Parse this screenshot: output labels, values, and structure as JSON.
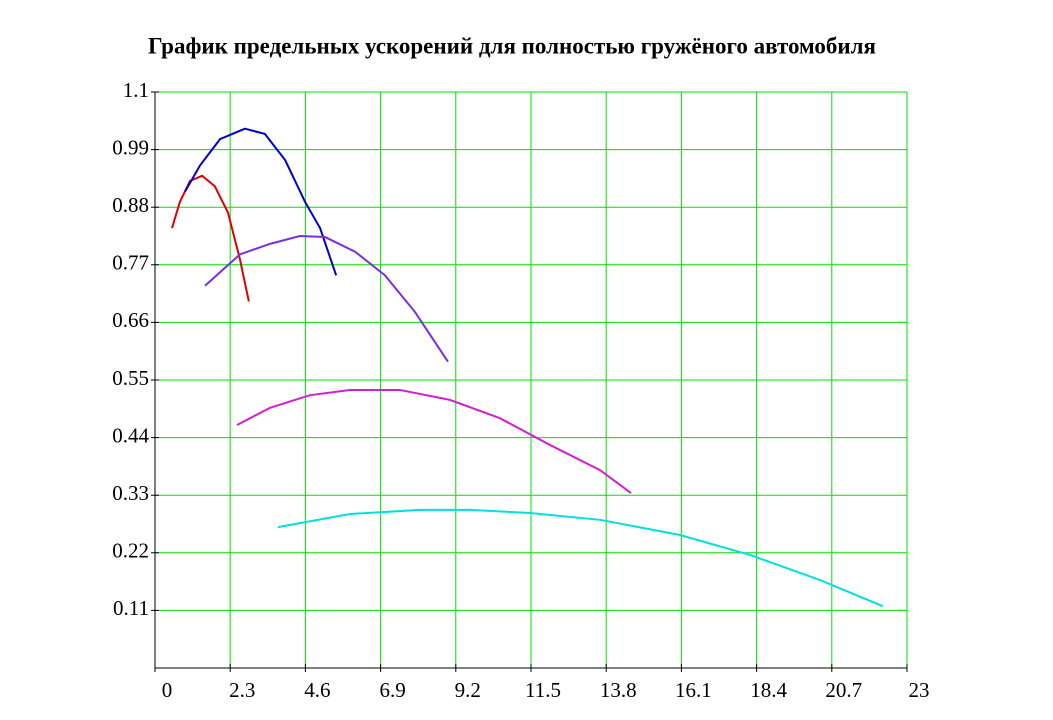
{
  "chart_data": {
    "type": "line",
    "title": "График предельных ускорений для полностью гружёного автомобиля",
    "xlim": [
      0,
      23
    ],
    "ylim": [
      0,
      1.1
    ],
    "xticks": [
      0,
      2.3,
      4.6,
      6.9,
      9.2,
      11.5,
      13.8,
      16.1,
      18.4,
      20.7,
      23
    ],
    "yticks": [
      0.11,
      0.22,
      0.33,
      0.44,
      0.55,
      0.66,
      0.77,
      0.88,
      0.99,
      1.1
    ],
    "grid": true,
    "grid_color": "#00e000",
    "series": [
      {
        "color": "#e00000",
        "x": [
          0.52,
          0.76,
          1.07,
          1.44,
          1.83,
          2.23,
          2.6,
          2.87
        ],
        "values": [
          0.84,
          0.89,
          0.93,
          0.94,
          0.92,
          0.87,
          0.78,
          0.7
        ]
      },
      {
        "color": "#0000c8",
        "x": [
          0.92,
          1.38,
          1.99,
          2.75,
          3.36,
          3.98,
          4.59,
          5.05,
          5.54
        ],
        "values": [
          0.91,
          0.96,
          1.01,
          1.03,
          1.02,
          0.97,
          0.89,
          0.84,
          0.75
        ]
      },
      {
        "color": "#7a2ee0",
        "x": [
          1.53,
          2.6,
          3.52,
          4.43,
          5.2,
          6.12,
          7.03,
          7.95,
          8.96
        ],
        "values": [
          0.73,
          0.79,
          0.81,
          0.825,
          0.823,
          0.795,
          0.75,
          0.68,
          0.585
        ]
      },
      {
        "color": "#d020d0",
        "x": [
          2.51,
          3.52,
          4.74,
          5.96,
          7.49,
          9.02,
          10.55,
          12.08,
          13.61,
          14.56
        ],
        "values": [
          0.464,
          0.497,
          0.521,
          0.531,
          0.531,
          0.512,
          0.477,
          0.426,
          0.378,
          0.334
        ]
      },
      {
        "color": "#00e0e0",
        "x": [
          3.76,
          5.96,
          8.1,
          9.63,
          11.47,
          13.61,
          16.06,
          18.2,
          20.34,
          22.26
        ],
        "values": [
          0.269,
          0.294,
          0.302,
          0.302,
          0.296,
          0.283,
          0.254,
          0.216,
          0.168,
          0.118
        ]
      }
    ]
  }
}
